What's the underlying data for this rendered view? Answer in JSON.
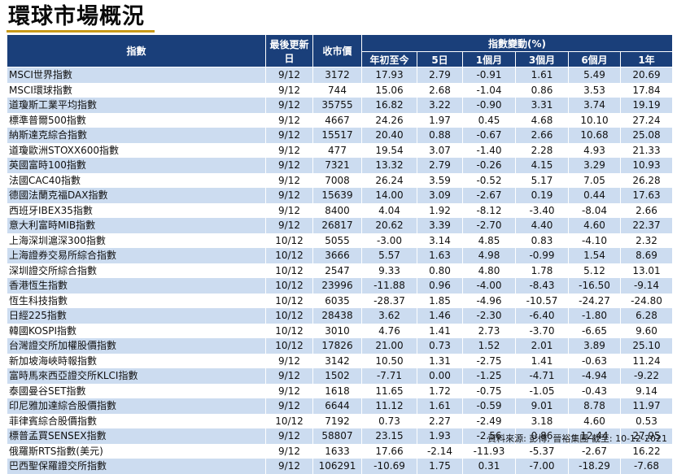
{
  "title": "環球市場概況",
  "headers": {
    "index": "指數",
    "last_update": "最後更新日",
    "close": "收市價",
    "change_group": "指數變動(%)",
    "periods": [
      "年初至今",
      "5日",
      "1個月",
      "3個月",
      "6個月",
      "1年"
    ]
  },
  "rows": [
    [
      "MSCI世界指數",
      "9/12",
      "3172",
      "17.93",
      "2.79",
      "-0.91",
      "1.61",
      "5.49",
      "20.69"
    ],
    [
      "MSCI環球指數",
      "9/12",
      "744",
      "15.06",
      "2.68",
      "-1.04",
      "0.86",
      "3.53",
      "17.84"
    ],
    [
      "道瓊斯工業平均指數",
      "9/12",
      "35755",
      "16.82",
      "3.22",
      "-0.90",
      "3.31",
      "3.74",
      "19.19"
    ],
    [
      "標準普爾500指數",
      "9/12",
      "4667",
      "24.26",
      "1.97",
      "0.45",
      "4.68",
      "10.10",
      "27.24"
    ],
    [
      "納斯達克綜合指數",
      "9/12",
      "15517",
      "20.40",
      "0.88",
      "-0.67",
      "2.66",
      "10.68",
      "25.08"
    ],
    [
      "道瓊歐洲STOXX600指數",
      "9/12",
      "477",
      "19.54",
      "3.07",
      "-1.40",
      "2.28",
      "4.93",
      "21.33"
    ],
    [
      "英國富時100指數",
      "9/12",
      "7321",
      "13.32",
      "2.79",
      "-0.26",
      "4.15",
      "3.29",
      "10.93"
    ],
    [
      "法國CAC40指數",
      "9/12",
      "7008",
      "26.24",
      "3.59",
      "-0.52",
      "5.17",
      "7.05",
      "26.28"
    ],
    [
      "德國法蘭克福DAX指數",
      "9/12",
      "15639",
      "14.00",
      "3.09",
      "-2.67",
      "0.19",
      "0.44",
      "17.63"
    ],
    [
      "西班牙IBEX35指數",
      "9/12",
      "8400",
      "4.04",
      "1.92",
      "-8.12",
      "-3.40",
      "-8.04",
      "2.66"
    ],
    [
      "意大利富時MIB指數",
      "9/12",
      "26817",
      "20.62",
      "3.39",
      "-2.70",
      "4.40",
      "4.60",
      "22.37"
    ],
    [
      "上海深圳滬深300指數",
      "10/12",
      "5055",
      "-3.00",
      "3.14",
      "4.85",
      "0.83",
      "-4.10",
      "2.32"
    ],
    [
      "上海證券交易所綜合指數",
      "10/12",
      "3666",
      "5.57",
      "1.63",
      "4.98",
      "-0.99",
      "1.54",
      "8.69"
    ],
    [
      "深圳證交所綜合指數",
      "10/12",
      "2547",
      "9.33",
      "0.80",
      "4.80",
      "1.78",
      "5.12",
      "13.01"
    ],
    [
      "香港恆生指數",
      "10/12",
      "23996",
      "-11.88",
      "0.96",
      "-4.00",
      "-8.43",
      "-16.50",
      "-9.14"
    ],
    [
      "恆生科技指數",
      "10/12",
      "6035",
      "-28.37",
      "1.85",
      "-4.96",
      "-10.57",
      "-24.27",
      "-24.80"
    ],
    [
      "日經225指數",
      "10/12",
      "28438",
      "3.62",
      "1.46",
      "-2.30",
      "-6.40",
      "-1.80",
      "6.28"
    ],
    [
      "韓國KOSPI指數",
      "10/12",
      "3010",
      "4.76",
      "1.41",
      "2.73",
      "-3.70",
      "-6.65",
      "9.60"
    ],
    [
      "台灣證交所加權股價指數",
      "10/12",
      "17826",
      "21.00",
      "0.73",
      "1.52",
      "2.01",
      "3.89",
      "25.10"
    ],
    [
      "新加坡海峽時報指數",
      "9/12",
      "3142",
      "10.50",
      "1.31",
      "-2.75",
      "1.41",
      "-0.63",
      "11.24"
    ],
    [
      "富時馬來西亞證交所KLCI指數",
      "9/12",
      "1502",
      "-7.71",
      "0.00",
      "-1.25",
      "-4.71",
      "-4.94",
      "-9.22"
    ],
    [
      "泰國曼谷SET指數",
      "9/12",
      "1618",
      "11.65",
      "1.72",
      "-0.75",
      "-1.05",
      "-0.43",
      "9.14"
    ],
    [
      "印尼雅加達綜合股價指數",
      "9/12",
      "6644",
      "11.12",
      "1.61",
      "-0.59",
      "9.01",
      "8.78",
      "11.97"
    ],
    [
      "菲律賓綜合股價指數",
      "10/12",
      "7192",
      "0.73",
      "2.27",
      "-2.49",
      "3.18",
      "4.60",
      "0.53"
    ],
    [
      "標普孟買SENSEX指數",
      "9/12",
      "58807",
      "23.15",
      "1.93",
      "-2.56",
      "0.86",
      "12.44",
      "27.95"
    ],
    [
      "俄羅斯RTS指數(美元)",
      "9/12",
      "1633",
      "17.66",
      "-2.14",
      "-11.93",
      "-5.37",
      "-2.67",
      "16.22"
    ],
    [
      "巴西聖保羅證交所指數",
      "9/12",
      "106291",
      "-10.69",
      "1.75",
      "0.31",
      "-7.00",
      "-18.29",
      "-7.68"
    ]
  ],
  "source": "資料來源: 彭博, 晉裕集團 截至: 10-12-2021",
  "colors": {
    "header_bg": "#1a3f7a",
    "stripe": "#ccdcf0",
    "underline": "#c89a1a"
  }
}
